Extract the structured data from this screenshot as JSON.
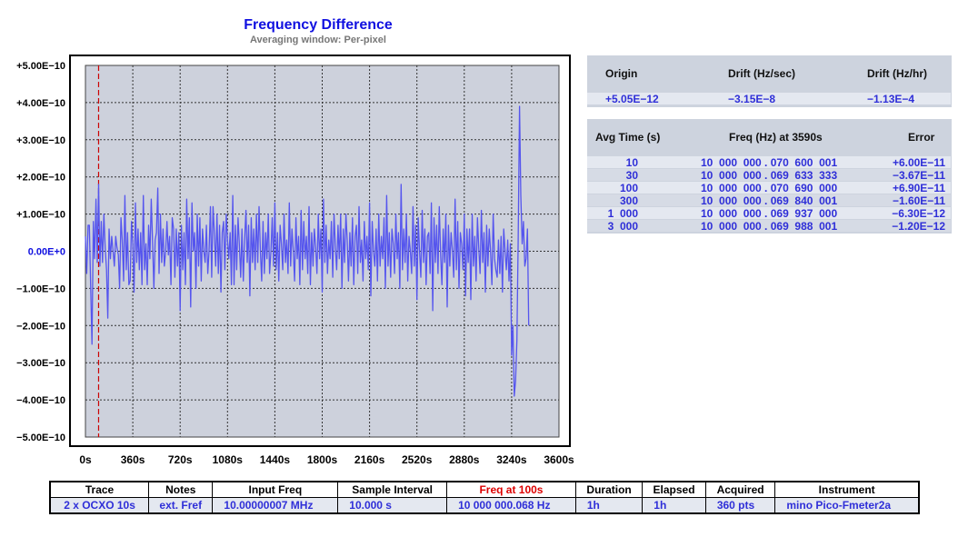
{
  "header": {
    "title": "Frequency Difference",
    "subtitle": "Averaging window: Per-pixel"
  },
  "chart_data": {
    "type": "line",
    "title": "Frequency Difference",
    "xlabel": "",
    "ylabel": "",
    "xlim": [
      0,
      3600
    ],
    "ylim": [
      -5e-10,
      5e-10
    ],
    "grid": true,
    "marker_x": 100,
    "x_ticks": [
      "0s",
      "360s",
      "720s",
      "1080s",
      "1440s",
      "1800s",
      "2160s",
      "2520s",
      "2880s",
      "3240s",
      "3600s"
    ],
    "y_ticks": [
      "+5.00E−10",
      "+4.00E−10",
      "+3.00E−10",
      "+2.00E−10",
      "+1.00E−10",
      "0.00E+0",
      "−1.00E−10",
      "−2.00E−10",
      "−3.00E−10",
      "−4.00E−10",
      "−5.00E−10"
    ],
    "colors": {
      "line": "#5555ee",
      "grid_bg": "#cdd1dc",
      "marker": "#cc0000",
      "zero_label": "#1010e0"
    },
    "series": [
      {
        "x_step": 10,
        "values": [
          4e-11,
          -6e-11,
          7e-11,
          7e-11,
          -1e-10,
          -2.5e-10,
          8e-11,
          -2e-11,
          1.4e-10,
          -3e-11,
          1.8e-10,
          -4e-11,
          8e-11,
          -3e-11,
          1e-10,
          1e-11,
          -5e-11,
          -1.8e-10,
          6e-11,
          -2e-11,
          4e-11,
          0.0,
          -4e-11,
          4e-11,
          1e-11,
          -1e-11,
          -1e-10,
          9e-11,
          3e-11,
          -8e-11,
          1.5e-10,
          -5e-11,
          5e-11,
          -9e-11,
          -8e-11,
          8e-11,
          2e-11,
          -1.1e-10,
          1.3e-10,
          -3e-11,
          6e-11,
          -5e-11,
          5e-11,
          -9e-11,
          1.5e-10,
          -5e-11,
          2e-11,
          -9e-11,
          7e-11,
          -2e-11,
          1.4e-10,
          3e-11,
          -1e-10,
          3e-11,
          5e-11,
          1.7e-10,
          -6e-11,
          1e-10,
          -3e-11,
          6e-11,
          -4e-11,
          0.0,
          8e-11,
          -1e-11,
          4e-11,
          -9e-11,
          9e-11,
          6e-11,
          -7e-11,
          6e-11,
          -4e-11,
          5e-11,
          -1.6e-10,
          7e-11,
          -5e-11,
          5e-11,
          -9e-11,
          1.4e-10,
          -2e-11,
          9e-11,
          -1.5e-10,
          1.3e-10,
          0.0,
          5e-11,
          -1e-10,
          1e-10,
          -4e-11,
          9e-11,
          -8e-11,
          6e-11,
          0.0,
          -3e-11,
          7e-11,
          -6e-11,
          0.0,
          1.2e-10,
          -7e-11,
          1.2e-10,
          5e-11,
          -4e-11,
          1e-10,
          -6e-11,
          7e-11,
          -1.1e-10,
          5e-11,
          8e-11,
          -5e-11,
          1e-10,
          3e-11,
          -2e-11,
          5e-11,
          -9e-11,
          1.5e-10,
          -9e-11,
          7e-11,
          -5e-11,
          9e-11,
          2e-11,
          -7e-11,
          6e-11,
          -8e-11,
          3e-11,
          1.1e-10,
          -3e-11,
          7e-11,
          -1.2e-10,
          9e-11,
          -3e-11,
          6e-11,
          -5e-11,
          1e-10,
          -3e-11,
          1.2e-10,
          0.0,
          -8e-11,
          8e-11,
          -6e-11,
          5e-11,
          -2e-11,
          1e-10,
          -6e-11,
          0.0,
          9e-11,
          -4e-11,
          1.3e-10,
          -5e-11,
          5e-11,
          -8e-11,
          7e-11,
          2e-11,
          -5e-11,
          1e-10,
          -3e-11,
          3e-11,
          -6e-11,
          1.3e-10,
          -4e-11,
          6e-11,
          0.0,
          -8e-11,
          9e-11,
          -2e-11,
          4e-11,
          -9e-11,
          1.1e-10,
          -5e-11,
          8e-11,
          -2e-11,
          4e-11,
          -6e-11,
          1.2e-10,
          -9e-11,
          5e-11,
          -4e-11,
          6e-11,
          1e-11,
          -6e-11,
          1e-10,
          -2e-11,
          6e-11,
          -1.1e-10,
          1.4e-10,
          -3e-11,
          7e-11,
          -6e-11,
          3e-11,
          -2e-11,
          8e-11,
          -7e-11,
          1e-10,
          1e-11,
          -5e-11,
          7e-11,
          -2e-11,
          1e-10,
          -1e-10,
          6e-11,
          -3e-11,
          1e-10,
          3e-11,
          -8e-11,
          5e-11,
          -4e-11,
          9e-11,
          -9e-11,
          4e-11,
          7e-11,
          -6e-11,
          1.2e-10,
          -3e-11,
          3e-11,
          -8e-11,
          8e-11,
          -2e-11,
          4e-11,
          -5e-11,
          1.3e-10,
          -1.2e-10,
          8e-11,
          0.0,
          -4e-11,
          6e-11,
          -8e-11,
          1e-10,
          -4e-11,
          4e-11,
          -2e-11,
          9e-11,
          -1e-10,
          1.5e-10,
          -4e-11,
          5e-11,
          -7e-11,
          6e-11,
          2e-11,
          -6e-11,
          1e-10,
          -2e-11,
          5e-11,
          -1e-10,
          1.8e-10,
          -5e-11,
          6e-11,
          -3e-11,
          1e-10,
          -8e-11,
          4e-11,
          0.0,
          -6e-11,
          1.2e-10,
          -4e-11,
          7e-11,
          -1.3e-10,
          9e-11,
          0.0,
          -7e-11,
          1.1e-10,
          -3e-11,
          6e-11,
          -9e-11,
          4e-11,
          5e-11,
          -6e-11,
          1.3e-10,
          -1.6e-10,
          9e-11,
          -3e-11,
          7e-11,
          -6e-11,
          1.2e-10,
          -1e-11,
          -9e-11,
          6e-11,
          -3e-11,
          1e-10,
          -1.5e-10,
          7e-11,
          -4e-11,
          5e-11,
          0.0,
          -7e-11,
          1.4e-10,
          -5e-11,
          8e-11,
          -1e-10,
          5e-11,
          2e-11,
          -5e-11,
          1e-10,
          -1.2e-10,
          6e-11,
          -3e-11,
          6e-11,
          -1.3e-10,
          1e-10,
          -4e-11,
          4e-11,
          -8e-11,
          9e-11,
          1e-11,
          -6e-11,
          1.1e-10,
          -3e-11,
          5e-11,
          -1.1e-10,
          7e-11,
          -4e-11,
          6e-11,
          0.0,
          -9e-11,
          1e-10,
          -2e-11,
          -5e-11,
          -7e-11,
          3e-11,
          -6e-11,
          4e-11,
          -1.1e-10,
          6e-11,
          0.0,
          -5e-11,
          3e-11,
          -8e-11,
          2e-11,
          -2.8e-10,
          -2e-10,
          -3.9e-10,
          -3.5e-10,
          -2.4e-10,
          3e-11,
          3.9e-10,
          1.5e-10,
          2e-11,
          8e-11,
          -4e-11,
          -2e-11,
          6e-11,
          -2e-10
        ]
      }
    ]
  },
  "origin_panel": {
    "headers": [
      "Origin",
      "Drift (Hz/sec)",
      "Drift (Hz/hr)"
    ],
    "values": [
      "+5.05E−12",
      "−3.15E−8",
      "−1.13E−4"
    ]
  },
  "avg_panel": {
    "headers": [
      "Avg Time (s)",
      "Freq (Hz) at 3590s",
      "Error"
    ],
    "rows": [
      {
        "avg": "10",
        "freq": "10  000  000 . 070  600  001",
        "err": "+6.00E−11"
      },
      {
        "avg": "30",
        "freq": "10  000  000 . 069  633  333",
        "err": "−3.67E−11"
      },
      {
        "avg": "100",
        "freq": "10  000  000 . 070  690  000",
        "err": "+6.90E−11"
      },
      {
        "avg": "300",
        "freq": "10  000  000 . 069  840  001",
        "err": "−1.60E−11"
      },
      {
        "avg": "1  000",
        "freq": "10  000  000 . 069  937  000",
        "err": "−6.30E−12"
      },
      {
        "avg": "3  000",
        "freq": "10  000  000 . 069  988  001",
        "err": "−1.20E−12"
      }
    ]
  },
  "info_table": {
    "headers": [
      "Trace",
      "Notes",
      "Input Freq",
      "Sample Interval",
      "Freq at 100s",
      "Duration",
      "Elapsed",
      "Acquired",
      "Instrument"
    ],
    "values": [
      "2 x OCXO 10s",
      "ext. Fref",
      "10.00000007 MHz",
      "10.000 s",
      "10 000 000.068 Hz",
      "1h",
      "1h",
      "360 pts",
      "mino Pico-Fmeter2a"
    ],
    "highlight_header_color": "#dd0000"
  }
}
